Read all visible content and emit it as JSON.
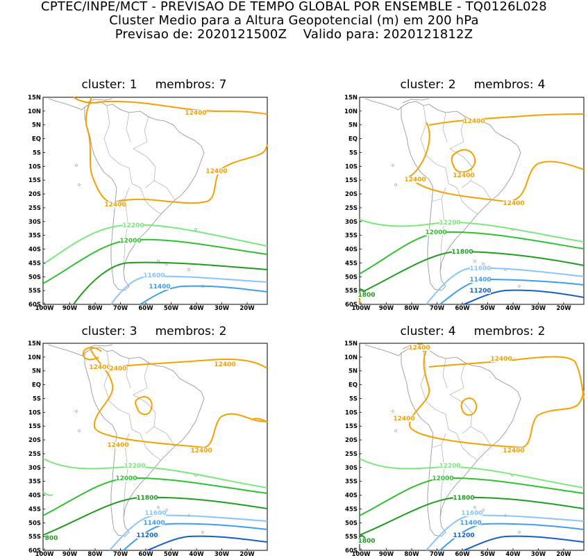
{
  "header": {
    "line1": "CPTEC/INPE/MCT - PREVISAO DE TEMPO GLOBAL POR ENSEMBLE - TQ0126L028",
    "line2": "Cluster Medio para a Altura Geopotencial (m) em 200 hPa",
    "line3": "Previsao de: 2020121500Z    Valido para: 2020121812Z"
  },
  "axes": {
    "lat_ticks": [
      "15N",
      "10N",
      "5N",
      "EQ",
      "5S",
      "10S",
      "15S",
      "20S",
      "25S",
      "30S",
      "35S",
      "40S",
      "45S",
      "50S",
      "55S",
      "60S"
    ],
    "lon_ticks": [
      "100W",
      "90W",
      "80W",
      "70W",
      "60W",
      "50W",
      "40W",
      "30W",
      "20W"
    ]
  },
  "colors": {
    "c12400": "#f5a000",
    "c12200": "#7ae87a",
    "c12000": "#2fc02f",
    "c11800": "#1f9c1f",
    "c11600": "#88c4ff",
    "c11400": "#3d9ef0",
    "c11200": "#1560c8",
    "coast": "#8c8c8c"
  },
  "panels": [
    {
      "cluster_label": "cluster:",
      "cluster": "1",
      "members_label": "membros:",
      "members": "7",
      "contour_labels": [
        {
          "text": "12400",
          "color": "c12400"
        },
        {
          "text": "12400",
          "color": "c12400"
        },
        {
          "text": "12400",
          "color": "c12400"
        },
        {
          "text": "12200",
          "color": "c12200"
        },
        {
          "text": "12000",
          "color": "c12000"
        },
        {
          "text": "11600",
          "color": "c11600"
        },
        {
          "text": "11400",
          "color": "c11400"
        }
      ]
    },
    {
      "cluster_label": "cluster:",
      "cluster": "2",
      "members_label": "membros:",
      "members": "4",
      "contour_labels": [
        {
          "text": "12400",
          "color": "c12400"
        },
        {
          "text": "12400",
          "color": "c12400"
        },
        {
          "text": "12400",
          "color": "c12400"
        },
        {
          "text": "12400",
          "color": "c12400"
        },
        {
          "text": "12200",
          "color": "c12200"
        },
        {
          "text": "12000",
          "color": "c12000"
        },
        {
          "text": "11800",
          "color": "c11800"
        },
        {
          "text": "11600",
          "color": "c11600"
        },
        {
          "text": "11400",
          "color": "c11400"
        },
        {
          "text": "11200",
          "color": "c11200"
        },
        {
          "text": "1800",
          "color": "c11800"
        }
      ]
    },
    {
      "cluster_label": "cluster:",
      "cluster": "3",
      "members_label": "membros:",
      "members": "2",
      "contour_labels": [
        {
          "text": "12400",
          "color": "c12400"
        },
        {
          "text": "2400",
          "color": "c12400"
        },
        {
          "text": "12400",
          "color": "c12400"
        },
        {
          "text": "12400",
          "color": "c12400"
        },
        {
          "text": "12400",
          "color": "c12400"
        },
        {
          "text": "12200",
          "color": "c12200"
        },
        {
          "text": "12000",
          "color": "c12000"
        },
        {
          "text": "11800",
          "color": "c11800"
        },
        {
          "text": "11600",
          "color": "c11600"
        },
        {
          "text": "11400",
          "color": "c11400"
        },
        {
          "text": "11200",
          "color": "c11200"
        },
        {
          "text": "800",
          "color": "c11800"
        }
      ]
    },
    {
      "cluster_label": "cluster:",
      "cluster": "4",
      "members_label": "membros:",
      "members": "2",
      "contour_labels": [
        {
          "text": "12400",
          "color": "c12400"
        },
        {
          "text": "12400",
          "color": "c12400"
        },
        {
          "text": "12400",
          "color": "c12400"
        },
        {
          "text": "12400",
          "color": "c12400"
        },
        {
          "text": "12200",
          "color": "c12200"
        },
        {
          "text": "12000",
          "color": "c12000"
        },
        {
          "text": "11800",
          "color": "c11800"
        },
        {
          "text": "11600",
          "color": "c11600"
        },
        {
          "text": "11400",
          "color": "c11400"
        },
        {
          "text": "11200",
          "color": "c11200"
        },
        {
          "text": "1800",
          "color": "c11800"
        }
      ]
    }
  ]
}
